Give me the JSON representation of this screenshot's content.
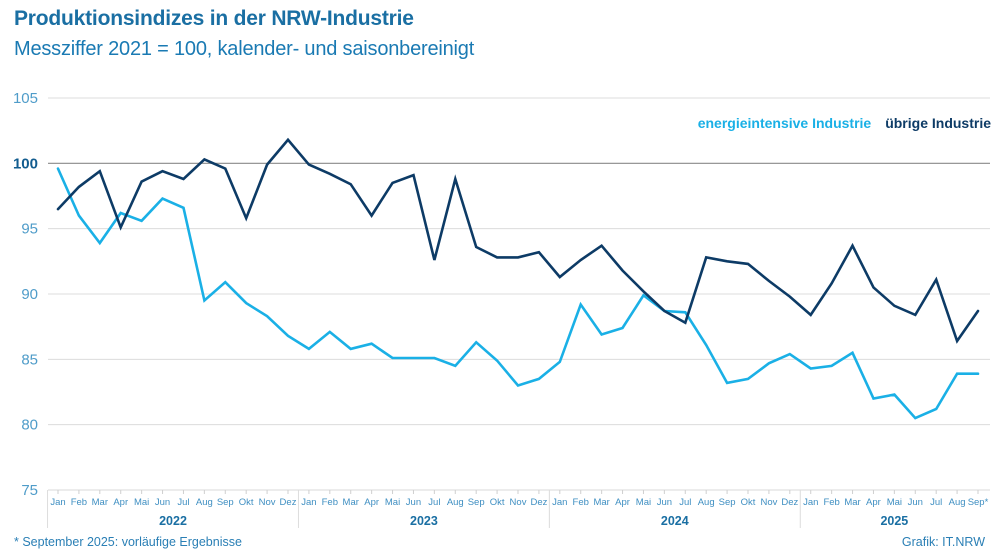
{
  "header": {
    "title": "Produktionsindizes in der NRW-Industrie",
    "subtitle": "Messziffer 2021 = 100, kalender- und saisonbereinigt"
  },
  "legend": {
    "items": [
      {
        "label": "energieintensive Industrie",
        "color": "#1ab0e6"
      },
      {
        "label": "übrige Industrie",
        "color": "#0d3b66"
      }
    ]
  },
  "footer": {
    "footnote": "*  September 2025: vorläufige Ergebnisse",
    "source": "Grafik: IT.NRW"
  },
  "chart_data": {
    "type": "line",
    "title": "Produktionsindizes in der NRW-Industrie",
    "subtitle": "Messziffer 2021 = 100, kalender- und saisonbereinigt",
    "xlabel": "",
    "ylabel": "",
    "ylim": [
      75,
      105
    ],
    "yticks": [
      75,
      80,
      85,
      90,
      95,
      100,
      105
    ],
    "grid": true,
    "reference_line": 100,
    "legend_position": "top-right",
    "years": [
      {
        "label": "2022",
        "months": 12
      },
      {
        "label": "2023",
        "months": 12
      },
      {
        "label": "2024",
        "months": 12
      },
      {
        "label": "2025",
        "months": 9
      }
    ],
    "x": [
      "Jan",
      "Feb",
      "Mar",
      "Apr",
      "Mai",
      "Jun",
      "Jul",
      "Aug",
      "Sep",
      "Okt",
      "Nov",
      "Dez",
      "Jan",
      "Feb",
      "Mar",
      "Apr",
      "Mai",
      "Jun",
      "Jul",
      "Aug",
      "Sep",
      "Okt",
      "Nov",
      "Dez",
      "Jan",
      "Feb",
      "Mar",
      "Apr",
      "Mai",
      "Jun",
      "Jul",
      "Aug",
      "Sep",
      "Okt",
      "Nov",
      "Dez",
      "Jan",
      "Feb",
      "Mar",
      "Apr",
      "Mai",
      "Jun",
      "Jul",
      "Aug",
      "Sep*"
    ],
    "series": [
      {
        "name": "energieintensive Industrie",
        "color": "#1ab0e6",
        "values": [
          99.6,
          96.0,
          93.9,
          96.2,
          95.6,
          97.3,
          96.6,
          89.5,
          90.9,
          89.3,
          88.3,
          86.8,
          85.8,
          87.1,
          85.8,
          86.2,
          85.1,
          85.1,
          85.1,
          84.5,
          86.3,
          84.9,
          83.0,
          83.5,
          84.8,
          89.2,
          86.9,
          87.4,
          89.9,
          88.7,
          88.6,
          86.1,
          83.2,
          83.5,
          84.7,
          85.4,
          84.3,
          84.5,
          85.5,
          82.0,
          82.3,
          80.5,
          81.2,
          83.9,
          83.9
        ]
      },
      {
        "name": "übrige Industrie",
        "color": "#0d3b66",
        "values": [
          96.5,
          98.2,
          99.4,
          95.1,
          98.6,
          99.4,
          98.8,
          100.3,
          99.6,
          95.8,
          99.9,
          101.8,
          99.9,
          99.2,
          98.4,
          96.0,
          98.5,
          99.1,
          92.6,
          98.8,
          93.6,
          92.8,
          92.8,
          93.2,
          91.3,
          92.6,
          93.7,
          91.8,
          90.2,
          88.7,
          87.8,
          92.8,
          92.5,
          92.3,
          91.0,
          89.8,
          88.4,
          90.8,
          93.7,
          90.5,
          89.1,
          88.4,
          91.1,
          86.4,
          88.7
        ]
      }
    ]
  }
}
